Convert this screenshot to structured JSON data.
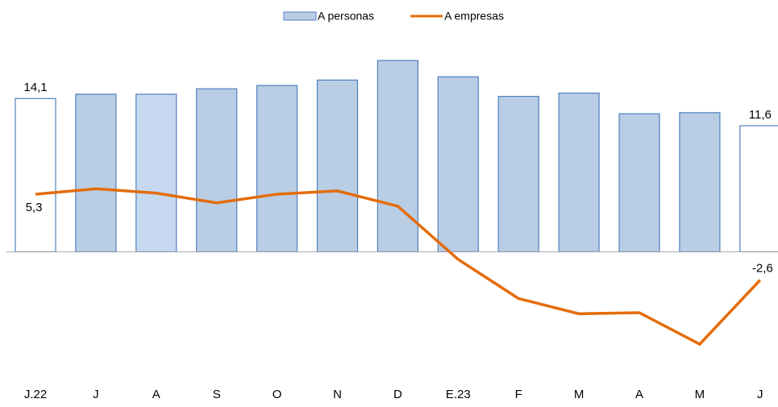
{
  "chart_data": {
    "type": "bar-line",
    "categories": [
      "J.22",
      "J",
      "A",
      "S",
      "O",
      "N",
      "D",
      "E.23",
      "F",
      "M",
      "A",
      "M",
      "J"
    ],
    "series": [
      {
        "name": "A personas",
        "type": "bar",
        "color": "#b9cde5",
        "bar_colors": [
          "#ffffff",
          "#b9cde5",
          "#c6d9f1",
          "#b9cde5",
          "#b9cde5",
          "#b9cde5",
          "#b9cde5",
          "#b9cde5",
          "#b9cde5",
          "#b9cde5",
          "#b9cde5",
          "#b9cde5",
          "#ffffff"
        ],
        "border_color": "#4f81bd",
        "values": [
          14.1,
          14.5,
          14.5,
          15.0,
          15.3,
          15.8,
          17.6,
          16.1,
          14.3,
          14.6,
          12.7,
          12.8,
          11.6
        ],
        "value_labels": [
          "14,1",
          null,
          null,
          null,
          null,
          null,
          null,
          null,
          null,
          null,
          null,
          null,
          "11,6"
        ]
      },
      {
        "name": "A empresas",
        "type": "line",
        "color": "#e46c0a",
        "values": [
          5.3,
          5.8,
          5.4,
          4.5,
          5.3,
          5.6,
          4.2,
          -0.7,
          -4.3,
          -5.7,
          -5.6,
          -8.5,
          -2.6
        ],
        "value_labels": [
          "5,3",
          null,
          null,
          null,
          null,
          null,
          null,
          null,
          null,
          null,
          null,
          null,
          "-2,6"
        ]
      }
    ],
    "ylim": [
      -10.2,
      20.2
    ],
    "legend": "top"
  }
}
